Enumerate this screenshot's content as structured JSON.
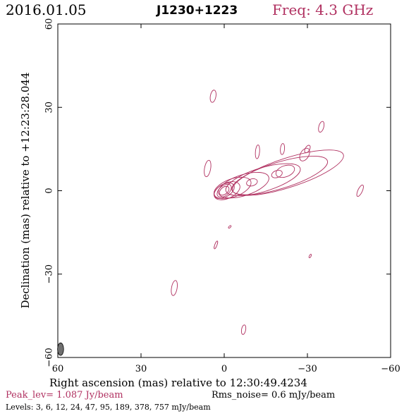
{
  "header": {
    "date": "2016.01.05",
    "source": "J1230+1223",
    "frequency": "Freq: 4.3 GHz"
  },
  "footer": {
    "peak": "Peak_lev=  1.087 Jy/beam",
    "rms": "Rms_noise=  0.6 mJy/beam",
    "levels": "Levels:   3,   6,  12,  24,  47,  95, 189, 378, 757 mJy/beam"
  },
  "colors": {
    "contour": "#b03060",
    "frame": "#000000",
    "beam": "#707070"
  },
  "chart_data": {
    "type": "contour",
    "title": "J1230+1223",
    "xlabel": "Right ascension (mas) relative to 12:30:49.4234",
    "ylabel": "Declination (mas) relative to +12:23:28.044",
    "xlim": [
      60,
      -60
    ],
    "ylim": [
      -60,
      60
    ],
    "x_ticks": [
      60,
      30,
      0,
      -30,
      -60
    ],
    "y_ticks": [
      -60,
      -30,
      0,
      30,
      60
    ],
    "x_tick_labels": [
      "60",
      "30",
      "0",
      "−30",
      "−60"
    ],
    "y_tick_labels": [
      "−60",
      "−30",
      "0",
      "30",
      "60"
    ],
    "contour_levels_mJy": [
      3,
      6,
      12,
      24,
      47,
      95,
      189,
      378,
      757
    ],
    "peak_Jy_per_beam": 1.087,
    "rms_mJy_per_beam": 0.6,
    "beam": {
      "x": 59,
      "y": -57,
      "major_mas": 4.5,
      "minor_mas": 2.2,
      "pa_deg": 0
    },
    "jet_islands": [
      {
        "x": 0,
        "y": 0,
        "major_mas": 4,
        "minor_mas": 2.5,
        "pa_deg": 40,
        "level": 9
      },
      {
        "x": 0,
        "y": 0,
        "major_mas": 6,
        "minor_mas": 3.5,
        "pa_deg": 40,
        "level": 8
      },
      {
        "x": 0,
        "y": 0,
        "major_mas": 8,
        "minor_mas": 4.5,
        "pa_deg": 30,
        "level": 7
      },
      {
        "x": -1,
        "y": 0,
        "major_mas": 10,
        "minor_mas": 5.5,
        "pa_deg": 25,
        "level": 6
      },
      {
        "x": -3,
        "y": 1,
        "major_mas": 14,
        "minor_mas": 6.5,
        "pa_deg": 20,
        "level": 5
      },
      {
        "x": -7,
        "y": 2,
        "major_mas": 19,
        "minor_mas": 7.5,
        "pa_deg": 18,
        "level": 4
      },
      {
        "x": -14,
        "y": 4,
        "major_mas": 28,
        "minor_mas": 8.5,
        "pa_deg": 17,
        "level": 3
      },
      {
        "x": -20,
        "y": 5.5,
        "major_mas": 36,
        "minor_mas": 9.5,
        "pa_deg": 17,
        "level": 2
      },
      {
        "x": -23,
        "y": 6.5,
        "major_mas": 42,
        "minor_mas": 10.5,
        "pa_deg": 18,
        "level": 1
      },
      {
        "x": -19,
        "y": 6,
        "major_mas": 4,
        "minor_mas": 2.5,
        "pa_deg": 20,
        "level": 4
      },
      {
        "x": -22,
        "y": 7,
        "major_mas": 7,
        "minor_mas": 4,
        "pa_deg": 20,
        "level": 3
      },
      {
        "x": -10,
        "y": 3,
        "major_mas": 4,
        "minor_mas": 2.5,
        "pa_deg": 15,
        "level": 4
      },
      {
        "x": -29,
        "y": 13,
        "major_mas": 5,
        "minor_mas": 3,
        "pa_deg": 60,
        "level": 2
      },
      {
        "x": -30,
        "y": 15,
        "major_mas": 3,
        "minor_mas": 1.6,
        "pa_deg": 60,
        "level": 3
      },
      {
        "x": -12,
        "y": 14,
        "major_mas": 5,
        "minor_mas": 1.5,
        "pa_deg": 85,
        "level": 1
      },
      {
        "x": -21,
        "y": 15,
        "major_mas": 4,
        "minor_mas": 1.5,
        "pa_deg": 85,
        "level": 1
      }
    ],
    "noise_islands": [
      {
        "x": 4,
        "y": 34,
        "major_mas": 4.5,
        "minor_mas": 2,
        "pa_deg": 80
      },
      {
        "x": 6,
        "y": 8,
        "major_mas": 6,
        "minor_mas": 2.2,
        "pa_deg": 80
      },
      {
        "x": -35,
        "y": 23,
        "major_mas": 4,
        "minor_mas": 1.8,
        "pa_deg": 75
      },
      {
        "x": -49,
        "y": 0,
        "major_mas": 4.5,
        "minor_mas": 1.6,
        "pa_deg": 65
      },
      {
        "x": -2,
        "y": -13,
        "major_mas": 1.2,
        "minor_mas": 0.6,
        "pa_deg": 45
      },
      {
        "x": 3,
        "y": -19.5,
        "major_mas": 3,
        "minor_mas": 0.8,
        "pa_deg": 70
      },
      {
        "x": -31,
        "y": -23.5,
        "major_mas": 1.4,
        "minor_mas": 0.6,
        "pa_deg": 60
      },
      {
        "x": 18,
        "y": -35,
        "major_mas": 5.5,
        "minor_mas": 2,
        "pa_deg": 80
      },
      {
        "x": -7,
        "y": -50,
        "major_mas": 3.5,
        "minor_mas": 1.5,
        "pa_deg": 80
      }
    ]
  }
}
